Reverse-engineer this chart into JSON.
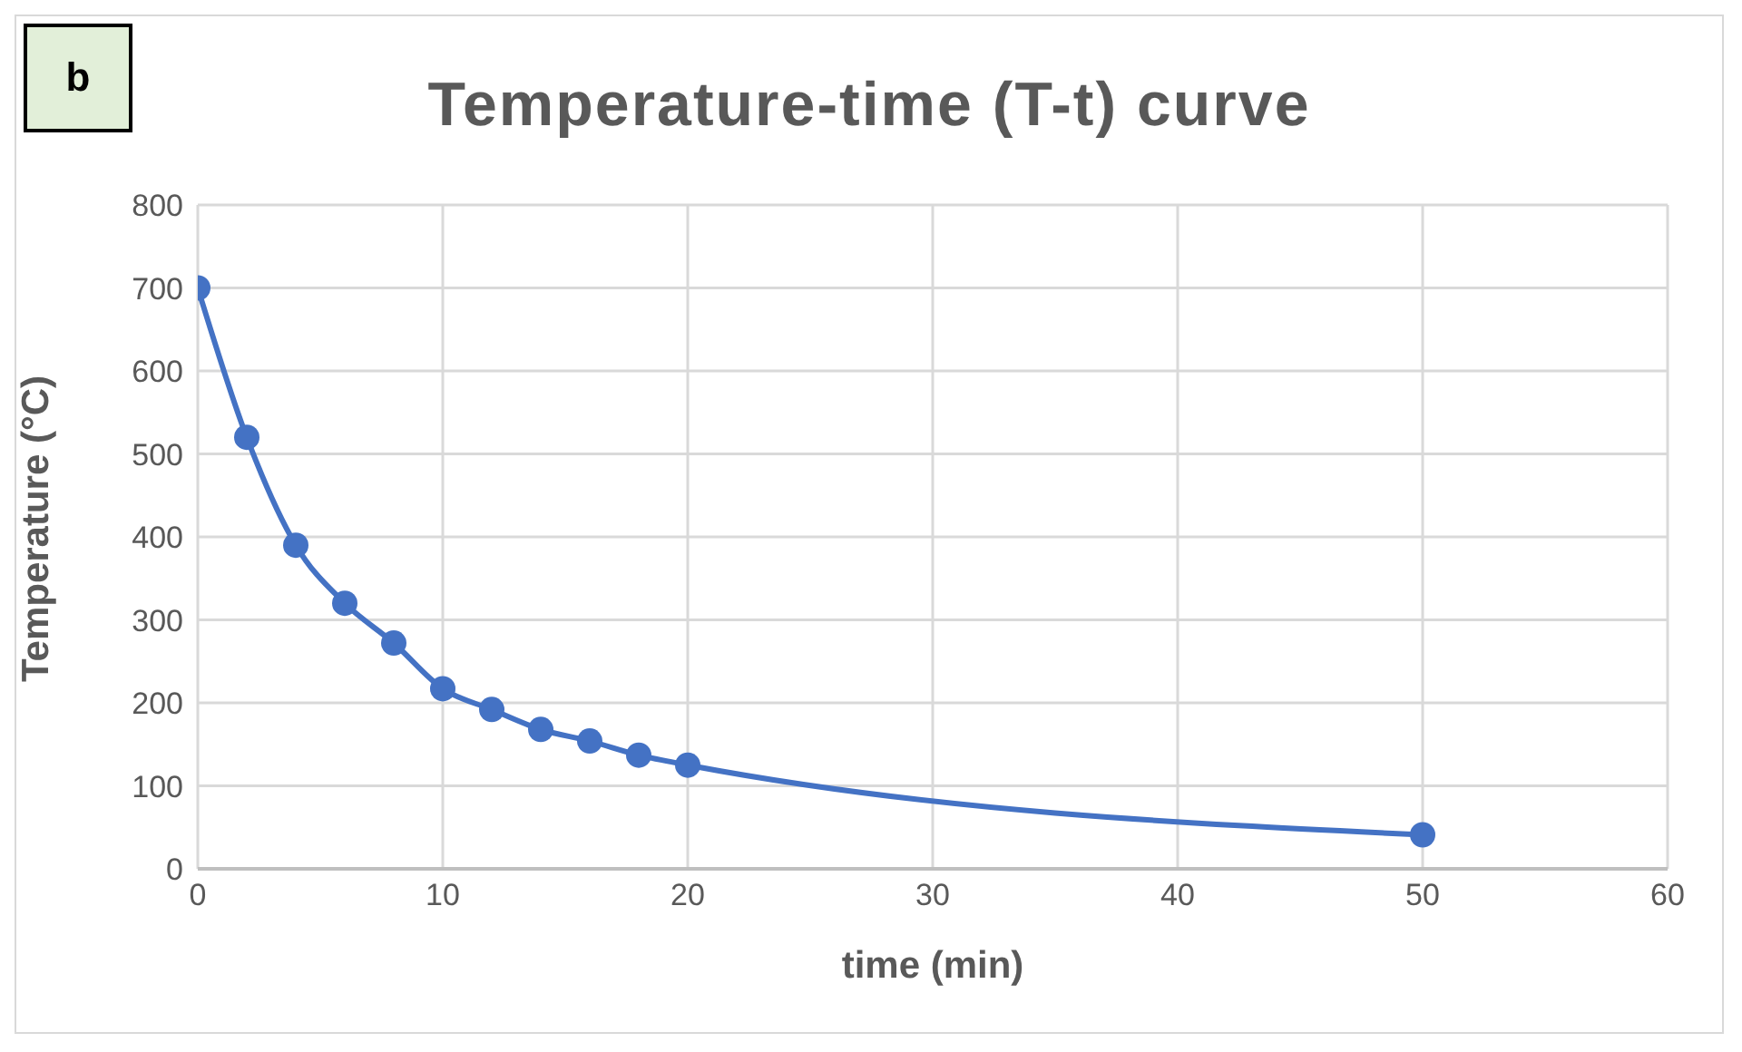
{
  "chart_data": {
    "type": "line",
    "title": "Temperature-time (T-t) curve",
    "xlabel": "time (min)",
    "ylabel": "Temperature (°C)",
    "annotations": [
      "b"
    ],
    "x": [
      0,
      2,
      4,
      6,
      8,
      10,
      12,
      14,
      16,
      18,
      20,
      50
    ],
    "series": [
      {
        "color": "#4472c4",
        "values": [
          700,
          520,
          390,
          320,
          272,
          217,
          192,
          168,
          154,
          137,
          125,
          41
        ]
      }
    ],
    "xlim": [
      0,
      60
    ],
    "xticks": [
      0,
      10,
      20,
      30,
      40,
      50,
      60
    ],
    "ylim": [
      0,
      800
    ],
    "yticks": [
      0,
      100,
      200,
      300,
      400,
      500,
      600,
      700,
      800
    ],
    "grid": true,
    "legend": false,
    "marker": "circle",
    "line_style": "solid"
  }
}
